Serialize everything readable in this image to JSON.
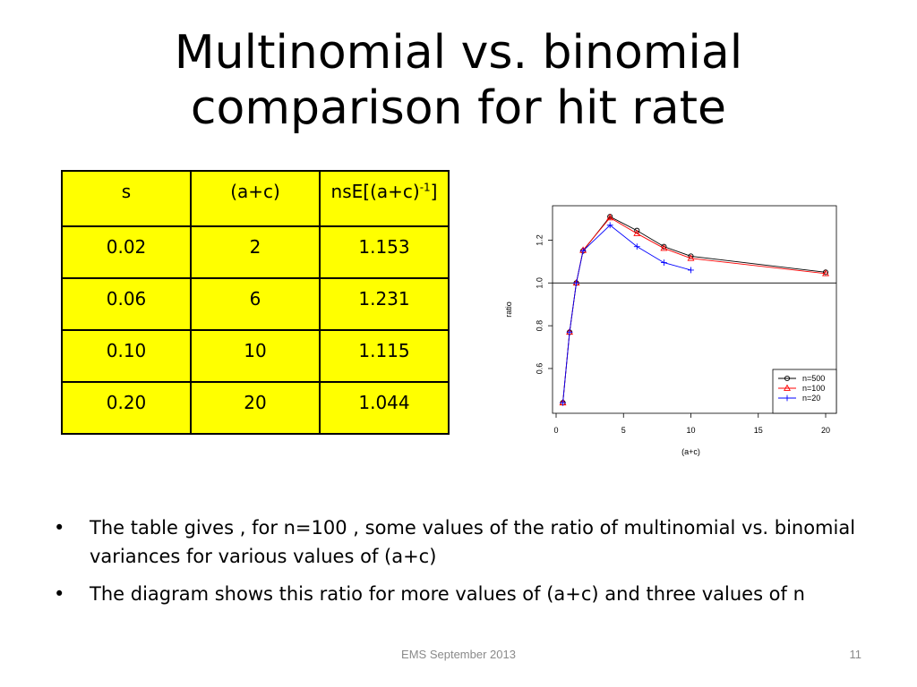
{
  "slide": {
    "title_line1": "Multinomial vs. binomial",
    "title_line2": "comparison for hit rate"
  },
  "table": {
    "headers": [
      "s",
      "(a+c)",
      "nsE[(a+c)",
      "-1",
      "]"
    ],
    "rows": [
      [
        "0.02",
        "2",
        "1.153"
      ],
      [
        "0.06",
        "6",
        "1.231"
      ],
      [
        "0.10",
        "10",
        "1.115"
      ],
      [
        "0.20",
        "20",
        "1.044"
      ]
    ]
  },
  "bullets": [
    "The table gives , for n=100 , some values of the ratio of multinomial vs. binomial variances for various values of (a+c)",
    "The diagram shows this ratio for more values of (a+c) and three values of n"
  ],
  "footer": {
    "text": "EMS September 2013",
    "page": "11"
  },
  "chart_data": {
    "type": "line",
    "xlabel": "(a+c)",
    "ylabel": "ratio",
    "xlim": [
      0,
      20
    ],
    "ylim": [
      0.42,
      1.34
    ],
    "xticks": [
      0,
      5,
      10,
      15,
      20
    ],
    "yticks": [
      0.6,
      0.8,
      1.0,
      1.2
    ],
    "ytick_labels": [
      "0.6",
      "0.8",
      "1.0",
      "1.2"
    ],
    "reference_line": 1.0,
    "legend_position": "bottom-right",
    "series": [
      {
        "name": "n=500",
        "color": "#000000",
        "marker": "circle",
        "x": [
          0.5,
          1,
          1.5,
          2,
          4,
          6,
          8,
          10,
          20
        ],
        "y": [
          0.44,
          0.77,
          1.0,
          1.15,
          1.31,
          1.245,
          1.17,
          1.125,
          1.05
        ]
      },
      {
        "name": "n=100",
        "color": "#ff0000",
        "marker": "triangle",
        "x": [
          0.5,
          1,
          1.5,
          2,
          4,
          6,
          8,
          10,
          20
        ],
        "y": [
          0.44,
          0.77,
          1.0,
          1.153,
          1.305,
          1.231,
          1.162,
          1.115,
          1.044
        ]
      },
      {
        "name": "n=20",
        "color": "#0000ff",
        "marker": "plus",
        "x": [
          0.5,
          1,
          1.5,
          2,
          4,
          6,
          8,
          10
        ],
        "y": [
          0.44,
          0.77,
          1.0,
          1.15,
          1.27,
          1.17,
          1.095,
          1.06
        ]
      }
    ]
  }
}
